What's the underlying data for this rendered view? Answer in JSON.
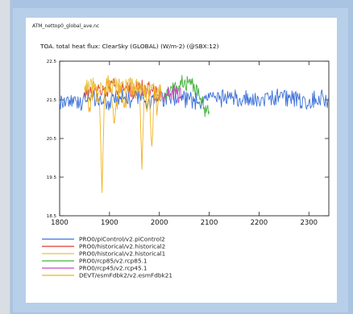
{
  "window": {
    "filename": "ATM_nettop0_global_ave.nc",
    "title": "TOA. total heat flux: ClearSky (GLOBAL) (W/m-2) (@SBX:12)"
  },
  "chart_data": {
    "type": "line",
    "title": "TOA. total heat flux: ClearSky (GLOBAL) (W/m-2) (@SBX:12)",
    "xlabel": "",
    "ylabel": "",
    "xlim": [
      1800,
      2340
    ],
    "ylim": [
      18.5,
      22.5
    ],
    "xticks": [
      1800,
      1900,
      2000,
      2100,
      2200,
      2300
    ],
    "yticks": [
      18.5,
      19.5,
      20.5,
      21.5,
      22.5
    ],
    "grid": false,
    "legend_position": "bottom",
    "series": [
      {
        "name": "PRO0/piControl/v2.piControl2",
        "color": "#3a6fd8",
        "x": [
          1800,
          1820,
          1840,
          1860,
          1880,
          1900,
          1920,
          1940,
          1960,
          1980,
          2000,
          2020,
          2040,
          2060,
          2080,
          2100,
          2120,
          2140,
          2160,
          2180,
          2200,
          2220,
          2240,
          2260,
          2280,
          2300,
          2320,
          2340
        ],
        "y": [
          21.45,
          21.5,
          21.4,
          21.55,
          21.5,
          21.45,
          21.6,
          21.5,
          21.55,
          21.45,
          21.5,
          21.6,
          21.55,
          21.5,
          21.45,
          21.55,
          21.5,
          21.6,
          21.5,
          21.55,
          21.45,
          21.5,
          21.6,
          21.55,
          21.5,
          21.45,
          21.6,
          21.5
        ]
      },
      {
        "name": "PRO0/historical/v2.historical2",
        "color": "#e03a2a",
        "x": [
          1850,
          1870,
          1890,
          1910,
          1930,
          1950,
          1970,
          1990,
          2005
        ],
        "y": [
          21.7,
          21.8,
          21.75,
          21.85,
          21.8,
          21.75,
          21.8,
          21.7,
          21.6
        ]
      },
      {
        "name": "PRO0/historical/v2.historical1",
        "color": "#e8c447",
        "x": [
          1850,
          1870,
          1890,
          1910,
          1930,
          1950,
          1970,
          1990,
          2005
        ],
        "y": [
          21.8,
          21.85,
          21.75,
          21.9,
          21.8,
          21.85,
          21.8,
          21.75,
          21.65
        ]
      },
      {
        "name": "PRO0/rcp85/v2.rcp85.1",
        "color": "#44b23e",
        "x": [
          2006,
          2020,
          2035,
          2050,
          2065,
          2080,
          2090,
          2100
        ],
        "y": [
          21.6,
          21.7,
          21.85,
          21.95,
          21.9,
          21.6,
          21.3,
          21.2
        ]
      },
      {
        "name": "PRO0/rcp45/v2.rcp45.1",
        "color": "#cc44c4",
        "x": [
          2006,
          2015,
          2025,
          2035,
          2045
        ],
        "y": [
          21.6,
          21.65,
          21.7,
          21.65,
          21.6
        ]
      },
      {
        "name": "DEVT/esmFdbk2/v2.esmFdbk21",
        "color": "#f2b21c",
        "x": [
          1850,
          1860,
          1870,
          1880,
          1885,
          1890,
          1900,
          1910,
          1920,
          1930,
          1940,
          1950,
          1960,
          1965,
          1970,
          1975,
          1980,
          1985,
          1990,
          1995,
          2000,
          2005
        ],
        "y": [
          21.85,
          21.3,
          21.9,
          21.4,
          19.1,
          21.8,
          21.95,
          20.9,
          21.85,
          21.3,
          21.9,
          21.7,
          21.85,
          19.7,
          21.9,
          21.2,
          21.8,
          20.3,
          21.85,
          21.1,
          21.75,
          21.6
        ]
      }
    ]
  }
}
